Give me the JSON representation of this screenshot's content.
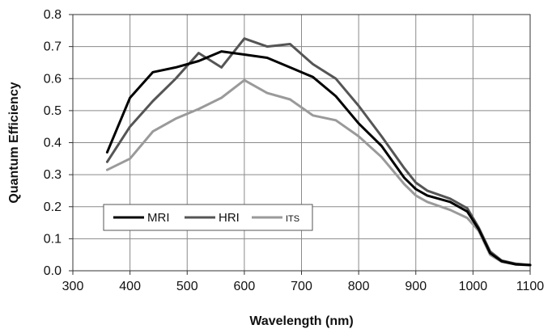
{
  "chart_data": {
    "type": "line",
    "title": "",
    "xlabel": "Wavelength (nm)",
    "ylabel": "Quantum Efficiency",
    "xlim": [
      300,
      1100
    ],
    "ylim": [
      0.0,
      0.8
    ],
    "x_ticks": [
      300,
      400,
      500,
      600,
      700,
      800,
      900,
      1000,
      1100
    ],
    "x_tick_labels": [
      "300",
      "400",
      "500",
      "600",
      "700",
      "800",
      "900",
      "1000",
      "1100"
    ],
    "y_ticks": [
      0.0,
      0.1,
      0.2,
      0.3,
      0.4,
      0.5,
      0.6,
      0.7,
      0.8
    ],
    "y_tick_labels": [
      "0.0",
      "0.1",
      "0.2",
      "0.3",
      "0.4",
      "0.5",
      "0.6",
      "0.7",
      "0.8"
    ],
    "grid": true,
    "legend_position": "lower-left",
    "series": [
      {
        "name": "MRI",
        "color": "#000000",
        "x": [
          360,
          400,
          440,
          480,
          520,
          560,
          600,
          640,
          680,
          720,
          760,
          800,
          840,
          880,
          900,
          920,
          960,
          990,
          1010,
          1030,
          1050,
          1075,
          1100
        ],
        "y": [
          0.37,
          0.54,
          0.62,
          0.635,
          0.655,
          0.685,
          0.675,
          0.665,
          0.635,
          0.605,
          0.545,
          0.46,
          0.39,
          0.29,
          0.255,
          0.235,
          0.215,
          0.185,
          0.13,
          0.055,
          0.03,
          0.02,
          0.018
        ]
      },
      {
        "name": "HRI",
        "color": "#555555",
        "x": [
          360,
          400,
          440,
          480,
          520,
          560,
          600,
          640,
          680,
          720,
          760,
          800,
          840,
          880,
          900,
          920,
          960,
          990,
          1010,
          1030,
          1050,
          1075,
          1100
        ],
        "y": [
          0.34,
          0.45,
          0.53,
          0.6,
          0.68,
          0.635,
          0.725,
          0.7,
          0.708,
          0.645,
          0.6,
          0.515,
          0.42,
          0.32,
          0.275,
          0.25,
          0.225,
          0.195,
          0.135,
          0.06,
          0.032,
          0.022,
          0.018
        ]
      },
      {
        "name": "ITS",
        "color": "#9a9a9a",
        "x": [
          360,
          400,
          440,
          480,
          520,
          560,
          600,
          640,
          680,
          720,
          760,
          800,
          840,
          880,
          900,
          920,
          960,
          990,
          1010,
          1030,
          1050,
          1075,
          1100
        ],
        "y": [
          0.315,
          0.35,
          0.435,
          0.475,
          0.505,
          0.54,
          0.595,
          0.555,
          0.535,
          0.485,
          0.47,
          0.42,
          0.355,
          0.27,
          0.235,
          0.215,
          0.19,
          0.165,
          0.125,
          0.05,
          0.028,
          0.02,
          0.017
        ]
      }
    ]
  }
}
